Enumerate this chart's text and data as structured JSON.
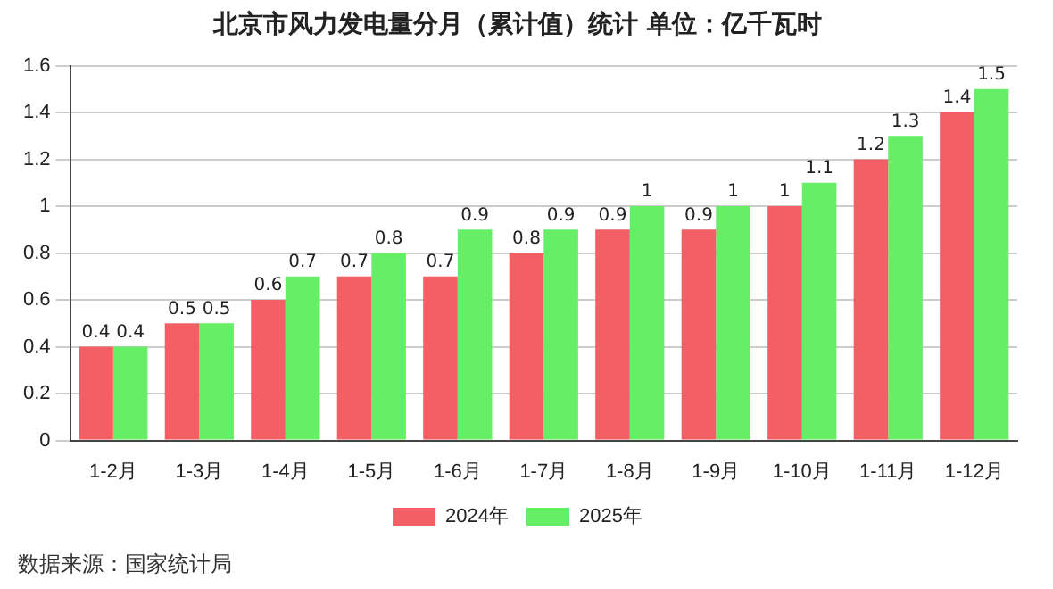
{
  "chart_data": {
    "type": "bar",
    "title": "北京市风力发电量分月（累计值）统计 单位：亿千瓦时",
    "categories": [
      "1-2月",
      "1-3月",
      "1-4月",
      "1-5月",
      "1-6月",
      "1-7月",
      "1-8月",
      "1-9月",
      "1-10月",
      "1-11月",
      "1-12月"
    ],
    "series": [
      {
        "name": "2024年",
        "color": "#f26065",
        "values": [
          0.4,
          0.5,
          0.6,
          0.7,
          0.7,
          0.8,
          0.9,
          0.9,
          1,
          1.2,
          1.4
        ]
      },
      {
        "name": "2025年",
        "color": "#66ee66",
        "values": [
          0.4,
          0.5,
          0.7,
          0.8,
          0.9,
          0.9,
          1,
          1,
          1.1,
          1.3,
          1.5
        ]
      }
    ],
    "ylim": [
      0,
      1.6
    ],
    "yticks": [
      0,
      0.2,
      0.4,
      0.6,
      0.8,
      1,
      1.2,
      1.4,
      1.6
    ],
    "grid": "y",
    "legend": "bottom",
    "data_labels": true,
    "annotations": [
      "数据来源：国家统计局"
    ]
  }
}
